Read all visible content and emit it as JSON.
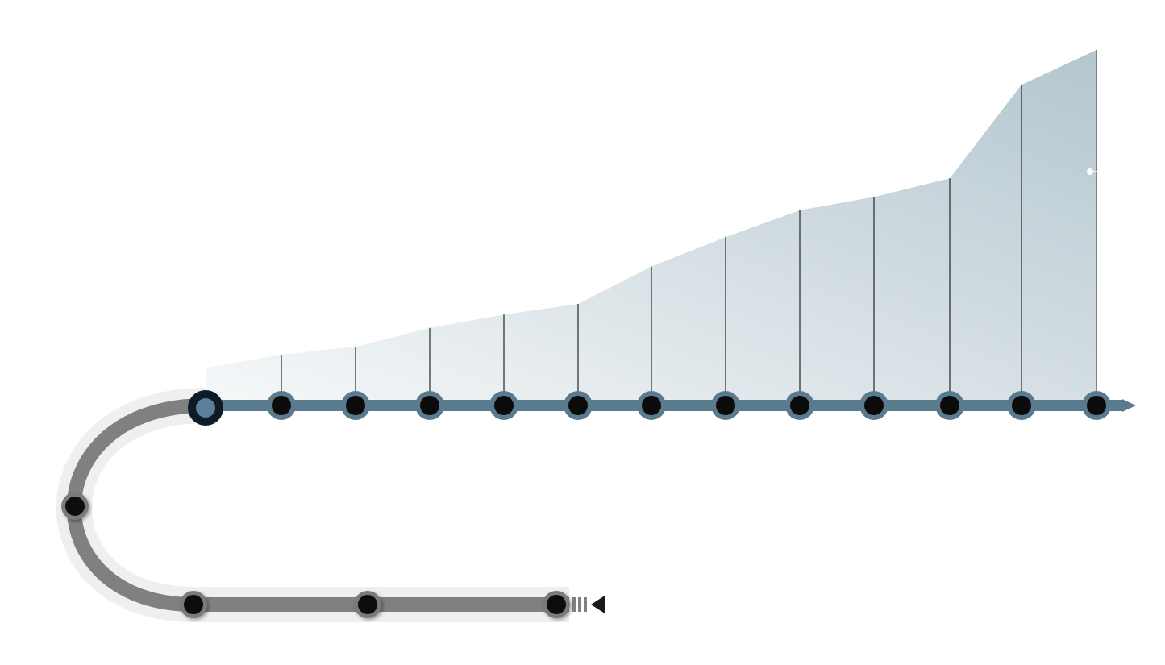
{
  "colors": {
    "background": "#ffffff",
    "future_track": "#5a7a8e",
    "future_ring": "#5a7a8e",
    "past_track": "#808080",
    "past_track_glow": "#efefef",
    "past_ring": "#7a7a7a",
    "node_fill": "#0b0b0b",
    "current_ring": "#0e1a26",
    "current_fill": "#5b7f98",
    "area_fill_light": "#f6f8f9",
    "area_fill_dark": "#b4c6cf",
    "stem": "#000000",
    "arrow_past": "#1a1a1a",
    "arrow_future": "#5a7a8e",
    "marker": "#ffffff"
  },
  "icons": {
    "past_direction": "triangle-left-icon",
    "future_direction": "triangle-right-icon"
  },
  "chart_data": {
    "type": "area",
    "title": "",
    "xlabel": "",
    "ylabel": "",
    "x": [
      1,
      2,
      3,
      4,
      5,
      6,
      7,
      8,
      9,
      10,
      11,
      12
    ],
    "values": [
      0.19,
      0.22,
      0.29,
      0.34,
      0.38,
      0.52,
      0.63,
      0.73,
      0.78,
      0.85,
      1.2,
      1.33
    ],
    "baseline_start_value": 0.14,
    "ylim": [
      0,
      1.33
    ],
    "grid": false,
    "legend": "none",
    "past_node_count": 4,
    "future_node_count": 12,
    "current_node": true
  }
}
